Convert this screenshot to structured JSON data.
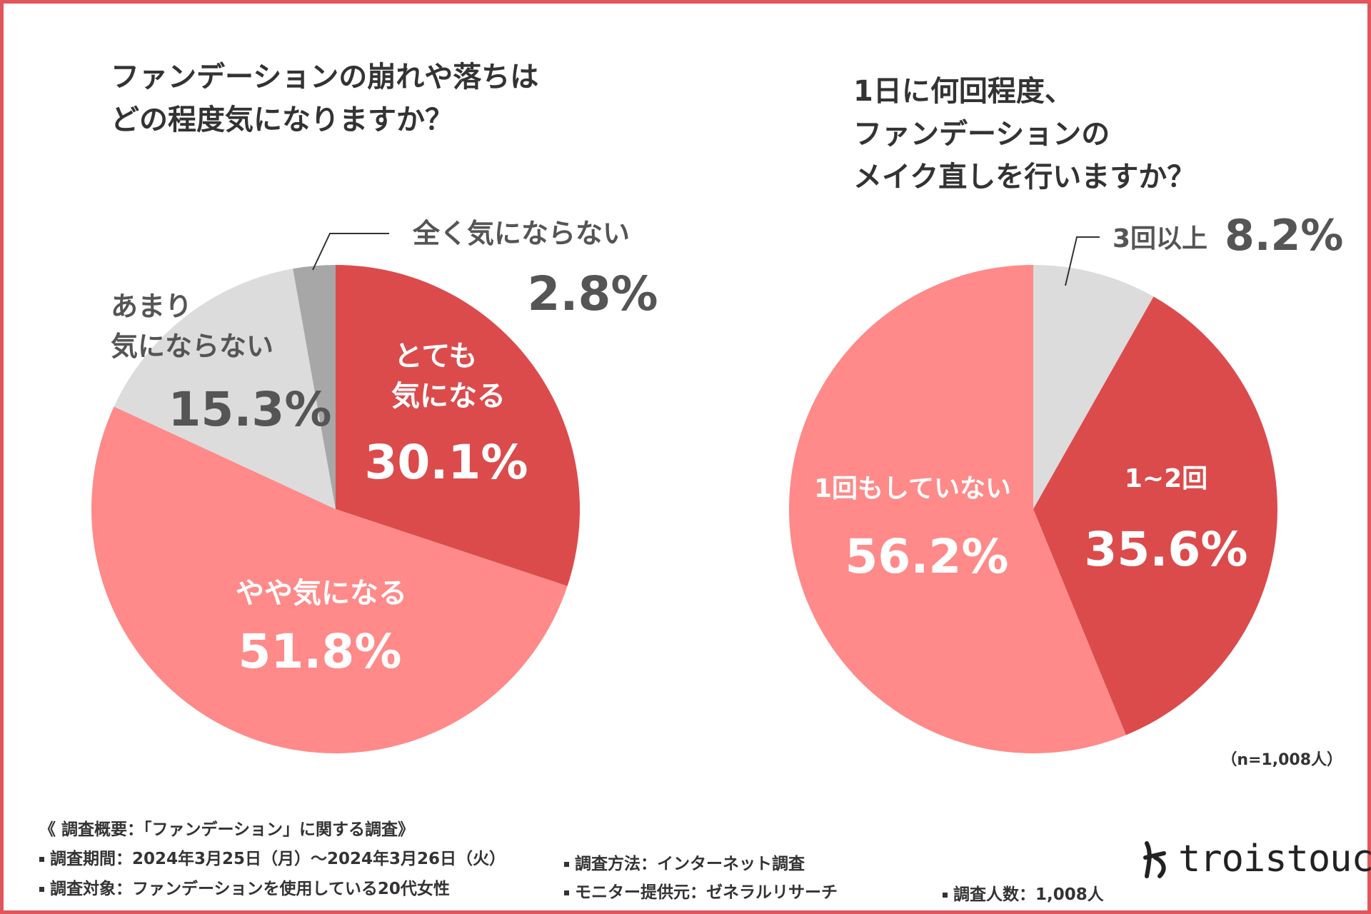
{
  "colors": {
    "dark_red": "#dc4b4c",
    "pink": "#ff8a89",
    "light_gray": "#dcdcdc",
    "mid_gray": "#a7a7a7",
    "frame": "#e0565a",
    "text_dark": "#333333",
    "text_gray": "#555555"
  },
  "chart_data": [
    {
      "type": "pie",
      "title_lines": [
        "ファンデーションの崩れや落ちは",
        "どの程度気になりますか？"
      ],
      "slices": [
        {
          "name": "とても気になる",
          "label_lines": [
            "とても",
            "気になる"
          ],
          "value": 30.1,
          "value_label": "30.1%",
          "color": "#dc4b4c"
        },
        {
          "name": "やや気になる",
          "label_lines": [
            "やや気になる"
          ],
          "value": 51.8,
          "value_label": "51.8%",
          "color": "#ff8a89"
        },
        {
          "name": "あまり気にならない",
          "label_lines": [
            "あまり",
            "気にならない"
          ],
          "value": 15.3,
          "value_label": "15.3%",
          "color": "#dcdcdc"
        },
        {
          "name": "全く気にならない",
          "label_lines": [
            "全く気にならない"
          ],
          "value": 2.8,
          "value_label": "2.8%",
          "color": "#a7a7a7"
        }
      ]
    },
    {
      "type": "pie",
      "title_lines": [
        "1日に何回程度、",
        "ファンデーションの",
        "メイク直しを行いますか？"
      ],
      "slices": [
        {
          "name": "3回以上",
          "label_lines": [
            "3回以上"
          ],
          "value": 8.2,
          "value_label": "8.2%",
          "color": "#dcdcdc"
        },
        {
          "name": "1~2回",
          "label_lines": [
            "1~2回"
          ],
          "value": 35.6,
          "value_label": "35.6%",
          "color": "#dc4b4c"
        },
        {
          "name": "1回もしていない",
          "label_lines": [
            "1回もしていない"
          ],
          "value": 56.2,
          "value_label": "56.2%",
          "color": "#ff8a89"
        }
      ]
    }
  ],
  "sample_size": "（n=1,008人）",
  "footer": {
    "heading": "《 調査概要：「ファンデーション」に関する調査》",
    "period": "調査期間：2024年3月25日（月）～2024年3月26日（火）",
    "target": "調査対象：ファンデーションを使用している20代女性",
    "method": "調査方法：インターネット調査",
    "provider": "モニター提供元：ゼネラルリサーチ",
    "respondents": "調査人数：1,008人"
  },
  "logo": {
    "text": "troistouch",
    "icon": "troistouch-mark-icon"
  }
}
